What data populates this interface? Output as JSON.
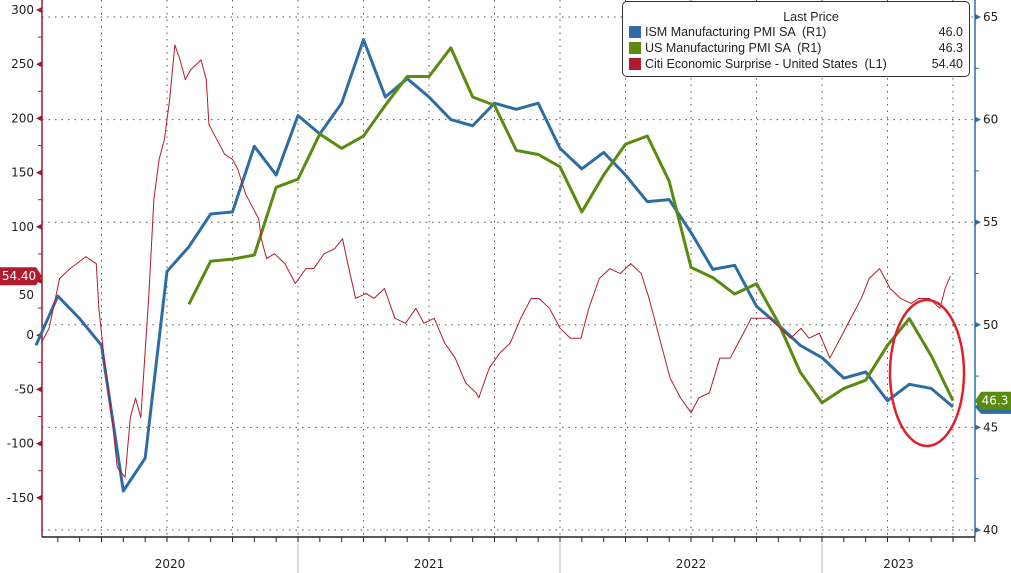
{
  "chart_data": {
    "type": "line",
    "title": "",
    "legend": {
      "title": "Last Price",
      "placement": "top-right",
      "entries": [
        {
          "name": "ISM Manufacturing PMI SA  (R1)",
          "last": "46.0",
          "color": "#2e6da4"
        },
        {
          "name": "US Manufacturing PMI SA  (R1)",
          "last": "46.3",
          "color": "#5a8a10"
        },
        {
          "name": "Citi Economic Surprise - United States  (L1)",
          "last": "54.40",
          "color": "#b01c2e"
        }
      ]
    },
    "left_axis": {
      "ticks": [
        300,
        250,
        200,
        150,
        100,
        50,
        0,
        -50,
        -100,
        -150
      ],
      "range": [
        -165,
        308
      ],
      "color": "#9b1b30"
    },
    "right_axis": {
      "ticks": [
        65,
        60,
        55,
        50,
        45,
        40
      ],
      "range": [
        40,
        65.4
      ],
      "color": "#2e6da4"
    },
    "x_axis": {
      "labels": [
        "2020",
        "2021",
        "2022",
        "2023"
      ],
      "range": [
        2020.02,
        2023.58
      ]
    },
    "grid": true,
    "tags": {
      "left": "54.40",
      "right": "46.3"
    },
    "annotation": {
      "shape": "ellipse",
      "color": "#e0202a",
      "around": "2023 PMI decline"
    },
    "series": [
      {
        "name": "ISM Manufacturing PMI SA  (R1)",
        "axis": "right",
        "color": "#2e6da4",
        "start": "2019-12",
        "values": [
          49.0,
          51.4,
          50.3,
          49.0,
          41.9,
          43.5,
          52.6,
          53.8,
          55.4,
          55.5,
          58.7,
          57.3,
          60.2,
          59.3,
          60.8,
          63.9,
          61.1,
          62.0,
          61.1,
          60.0,
          59.7,
          60.8,
          60.5,
          60.8,
          58.6,
          57.6,
          58.4,
          57.3,
          56.0,
          56.1,
          54.5,
          52.7,
          52.9,
          50.9,
          50.0,
          49.0,
          48.4,
          47.4,
          47.7,
          46.3,
          47.1,
          46.9,
          46.0
        ]
      },
      {
        "name": "US Manufacturing PMI SA  (R1)",
        "axis": "right",
        "color": "#5a8a10",
        "start": "2020-07",
        "values": [
          51.0,
          53.1,
          53.2,
          53.4,
          56.7,
          57.1,
          59.3,
          58.6,
          59.2,
          60.7,
          62.1,
          62.1,
          63.5,
          61.1,
          60.7,
          58.5,
          58.3,
          57.7,
          55.5,
          57.3,
          58.8,
          59.2,
          57.0,
          52.8,
          52.3,
          51.5,
          52.0,
          50.1,
          47.7,
          46.2,
          46.9,
          47.3,
          49.0,
          50.3,
          48.5,
          46.3
        ]
      },
      {
        "name": "Citi Economic Surprise - United States  (L1)",
        "axis": "left",
        "color": "#b01c2e",
        "x": [
          2020.02,
          2020.05,
          2020.09,
          2020.13,
          2020.19,
          2020.23,
          2020.24,
          2020.26,
          2020.29,
          2020.31,
          2020.34,
          2020.36,
          2020.38,
          2020.4,
          2020.43,
          2020.45,
          2020.47,
          2020.49,
          2020.51,
          2020.53,
          2020.55,
          2020.57,
          2020.59,
          2020.61,
          2020.63,
          2020.65,
          2020.66,
          2020.69,
          2020.72,
          2020.75,
          2020.77,
          2020.8,
          2020.82,
          2020.85,
          2020.86,
          2020.88,
          2020.91,
          2020.95,
          2020.99,
          2021.03,
          2021.06,
          2021.1,
          2021.14,
          2021.17,
          2021.19,
          2021.22,
          2021.26,
          2021.29,
          2021.33,
          2021.37,
          2021.41,
          2021.45,
          2021.48,
          2021.52,
          2021.56,
          2021.6,
          2021.64,
          2021.68,
          2021.69,
          2021.73,
          2021.77,
          2021.81,
          2021.85,
          2021.89,
          2021.92,
          2021.96,
          2022.0,
          2022.04,
          2022.08,
          2022.11,
          2022.15,
          2022.19,
          2022.23,
          2022.27,
          2022.31,
          2022.34,
          2022.38,
          2022.42,
          2022.46,
          2022.5,
          2022.53,
          2022.57,
          2022.61,
          2022.65,
          2022.69,
          2022.73,
          2022.76,
          2022.8,
          2022.84,
          2022.88,
          2022.92,
          2022.95,
          2022.99,
          2023.03,
          2023.07,
          2023.11,
          2023.15,
          2023.18,
          2023.22,
          2023.26,
          2023.3,
          2023.34,
          2023.37,
          2023.41,
          2023.45,
          2023.47,
          2023.49
        ],
        "values": [
          -7.3,
          6.4,
          52.3,
          61.4,
          72.4,
          66.0,
          24.8,
          -21.1,
          -76.1,
          -122,
          -131,
          -76,
          -58,
          -76,
          34,
          125.6,
          162.3,
          180.6,
          217.3,
          267.8,
          254,
          235.7,
          244.8,
          249.4,
          254,
          235.7,
          194.4,
          180.6,
          166.9,
          162.3,
          153.2,
          130.3,
          121.1,
          107.3,
          89,
          70.7,
          75.2,
          66,
          47.7,
          61.4,
          61.4,
          75.2,
          79.8,
          89,
          66,
          33.9,
          38.5,
          33.9,
          43.1,
          15.6,
          11,
          24.8,
          11,
          15.6,
          -7.3,
          -21.1,
          -44,
          -53.2,
          -57.8,
          -30.3,
          -16.5,
          -7.3,
          15.6,
          33.9,
          33.9,
          24.8,
          6.4,
          -2.8,
          -2.8,
          24.8,
          52.3,
          61.4,
          56.9,
          66,
          56.9,
          33.9,
          -2.8,
          -39.4,
          -57.8,
          -71.5,
          -57.8,
          -53.2,
          -21.1,
          -21.1,
          -2.8,
          15.6,
          15.6,
          15.6,
          6.4,
          -2.8,
          6.4,
          -2.8,
          1.8,
          -21.1,
          -2.8,
          15.6,
          33.9,
          52.3,
          61.4,
          43.1,
          33.9,
          29.3,
          33.9,
          33.9,
          24.8,
          43.1,
          54.4
        ]
      }
    ]
  }
}
